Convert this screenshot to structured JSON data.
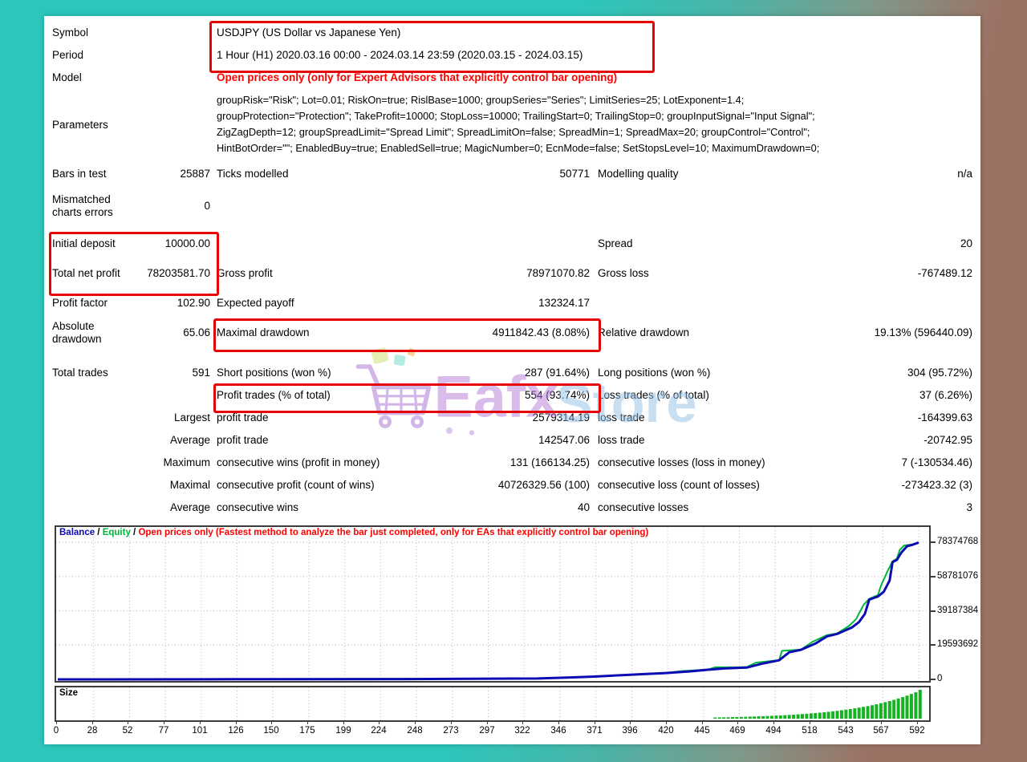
{
  "header": {
    "symbol_label": "Symbol",
    "symbol_value": "USDJPY (US Dollar vs Japanese Yen)",
    "period_label": "Period",
    "period_value": "1 Hour (H1) 2020.03.16 00:00 - 2024.03.14 23:59 (2020.03.15 - 2024.03.15)",
    "model_label": "Model",
    "model_value": "Open prices only (only for Expert Advisors that explicitly control bar opening)",
    "parameters_label": "Parameters",
    "parameters_line1": "groupRisk=\"Risk\"; Lot=0.01; RiskOn=true; RislBase=1000; groupSeries=\"Series\"; LimitSeries=25; LotExponent=1.4;",
    "parameters_line2": "groupProtection=\"Protection\"; TakeProfit=10000; StopLoss=10000; TrailingStart=0; TrailingStop=0; groupInputSignal=\"Input Signal\";",
    "parameters_line3": "ZigZagDepth=12; groupSpreadLimit=\"Spread Limit\"; SpreadLimitOn=false; SpreadMin=1; SpreadMax=20; groupControl=\"Control\";",
    "parameters_line4": "HintBotOrder=\"\"; EnabledBuy=true; EnabledSell=true; MagicNumber=0; EcnMode=false; SetStopsLevel=10; MaximumDrawdown=0;"
  },
  "stats": {
    "rows": [
      {
        "l1": "Bars in test",
        "v1": "25887",
        "l2": "Ticks modelled",
        "v2": "50771",
        "l3": "Modelling quality",
        "v3": "n/a"
      },
      {
        "l1": "Mismatched charts errors",
        "v1": "0",
        "l2": "",
        "v2": "",
        "l3": "",
        "v3": ""
      },
      {
        "l1": "Initial deposit",
        "v1": "10000.00",
        "l2": "",
        "v2": "",
        "l3": "Spread",
        "v3": "20"
      },
      {
        "l1": "Total net profit",
        "v1": "78203581.70",
        "l2": "Gross profit",
        "v2": "78971070.82",
        "l3": "Gross loss",
        "v3": "-767489.12"
      },
      {
        "l1": "Profit factor",
        "v1": "102.90",
        "l2": "Expected payoff",
        "v2": "132324.17",
        "l3": "",
        "v3": ""
      },
      {
        "l1": "Absolute drawdown",
        "v1": "65.06",
        "l2": "Maximal drawdown",
        "v2": "4911842.43 (8.08%)",
        "l3": "Relative drawdown",
        "v3": "19.13% (596440.09)"
      },
      {
        "l1": "Total trades",
        "v1": "591",
        "l2": "Short positions (won %)",
        "v2": "287 (91.64%)",
        "l3": "Long positions (won %)",
        "v3": "304 (95.72%)"
      },
      {
        "l1": "",
        "v1": "",
        "l2": "Profit trades (% of total)",
        "v2": "554 (93.74%)",
        "l3": "Loss trades (% of total)",
        "v3": "37 (6.26%)"
      },
      {
        "l1": "",
        "v1": "Largest",
        "l2": "profit trade",
        "v2": "2579314.19",
        "l3": "loss trade",
        "v3": "-164399.63"
      },
      {
        "l1": "",
        "v1": "Average",
        "l2": "profit trade",
        "v2": "142547.06",
        "l3": "loss trade",
        "v3": "-20742.95"
      },
      {
        "l1": "",
        "v1": "Maximum",
        "l2": "consecutive wins (profit in money)",
        "v2": "131 (166134.25)",
        "l3": "consecutive losses (loss in money)",
        "v3": "7 (-130534.46)"
      },
      {
        "l1": "",
        "v1": "Maximal",
        "l2": "consecutive profit (count of wins)",
        "v2": "40726329.56 (100)",
        "l3": "consecutive loss (count of losses)",
        "v3": "-273423.32 (3)"
      },
      {
        "l1": "",
        "v1": "Average",
        "l2": "consecutive wins",
        "v2": "40",
        "l3": "consecutive losses",
        "v3": "3"
      }
    ]
  },
  "legend": {
    "balance": "Balance",
    "sep": " / ",
    "equity": "Equity",
    "note": "Open prices only (Fastest method to analyze the bar just completed, only for EAs that explicitly control bar opening)"
  },
  "size_panel_label": "Size",
  "watermark": {
    "text_primary": "Eafx",
    "text_secondary": "Store"
  },
  "colors": {
    "red_box": "#e60505",
    "model_text": "#ff0000",
    "balance_line": "#0b0bb4",
    "equity_line": "#00b53c",
    "size_bars": "#17b224",
    "frame_teal": "#2cc6bc",
    "frame_brown": "#9b7365"
  },
  "chart_data": [
    {
      "type": "line",
      "legend": [
        "Balance",
        "Equity"
      ],
      "x_ticks": [
        0,
        28,
        52,
        77,
        101,
        126,
        150,
        175,
        199,
        224,
        248,
        273,
        297,
        322,
        346,
        371,
        396,
        420,
        445,
        469,
        494,
        518,
        543,
        567,
        592
      ],
      "y_ticks": [
        0,
        19593692,
        39187384,
        58781076,
        78374768
      ],
      "y_max": 78374768,
      "x_label_unit": "trade number",
      "grid": true,
      "series": [
        {
          "name": "Balance",
          "color": "#0b0bb4",
          "width": 3,
          "points": [
            [
              0,
              10000
            ],
            [
              120,
              80000
            ],
            [
              240,
              200000
            ],
            [
              330,
              500000
            ],
            [
              352,
              1100000
            ],
            [
              369,
              1600000
            ],
            [
              385,
              2300000
            ],
            [
              402,
              3000000
            ],
            [
              418,
              3600000
            ],
            [
              435,
              4600000
            ],
            [
              447,
              5500000
            ],
            [
              457,
              6200000
            ],
            [
              468,
              6600000
            ],
            [
              474,
              6800000
            ],
            [
              485,
              9100000
            ],
            [
              496,
              10900000
            ],
            [
              503,
              15500000
            ],
            [
              511,
              16900000
            ],
            [
              521,
              20500000
            ],
            [
              529,
              24600000
            ],
            [
              536,
              26000000
            ],
            [
              546,
              29600000
            ],
            [
              551,
              32800000
            ],
            [
              555,
              37400000
            ],
            [
              558,
              45600000
            ],
            [
              564,
              47400000
            ],
            [
              568,
              50100000
            ],
            [
              572,
              56500000
            ],
            [
              574,
              67000000
            ],
            [
              577,
              68300000
            ],
            [
              580,
              72400000
            ],
            [
              584,
              76100000
            ],
            [
              588,
              77000000
            ],
            [
              592,
              78213582
            ]
          ]
        },
        {
          "name": "Equity",
          "color": "#00b53c",
          "width": 2,
          "points": [
            [
              0,
              10000
            ],
            [
              330,
              520000
            ],
            [
              352,
              1150000
            ],
            [
              369,
              1650000
            ],
            [
              385,
              2350000
            ],
            [
              402,
              3050000
            ],
            [
              418,
              3700000
            ],
            [
              430,
              4800000
            ],
            [
              447,
              5600000
            ],
            [
              452,
              6900000
            ],
            [
              468,
              6900000
            ],
            [
              474,
              7100000
            ],
            [
              480,
              9600000
            ],
            [
              496,
              11000000
            ],
            [
              498,
              16300000
            ],
            [
              511,
              17000000
            ],
            [
              519,
              21500000
            ],
            [
              529,
              25300000
            ],
            [
              536,
              26300000
            ],
            [
              544,
              30500000
            ],
            [
              549,
              34500000
            ],
            [
              554,
              42500000
            ],
            [
              558,
              46000000
            ],
            [
              564,
              48200000
            ],
            [
              566,
              53500000
            ],
            [
              571,
              62500000
            ],
            [
              574,
              67500000
            ],
            [
              577,
              69000000
            ],
            [
              579,
              74000000
            ],
            [
              582,
              76500000
            ],
            [
              588,
              77200000
            ],
            [
              592,
              78213582
            ]
          ]
        }
      ]
    },
    {
      "type": "bar",
      "name": "Size",
      "color": "#17b224",
      "t_start": 452,
      "t_step": 3,
      "y_max": 1,
      "values": [
        0.042,
        0.045,
        0.048,
        0.051,
        0.055,
        0.058,
        0.062,
        0.067,
        0.071,
        0.076,
        0.082,
        0.087,
        0.093,
        0.1,
        0.107,
        0.114,
        0.122,
        0.131,
        0.14,
        0.149,
        0.16,
        0.171,
        0.183,
        0.195,
        0.209,
        0.223,
        0.239,
        0.256,
        0.273,
        0.292,
        0.313,
        0.334,
        0.357,
        0.382,
        0.409,
        0.437,
        0.468,
        0.5,
        0.535,
        0.572,
        0.612,
        0.654,
        0.7,
        0.748,
        0.8,
        0.856,
        0.915,
        1.0
      ]
    }
  ]
}
